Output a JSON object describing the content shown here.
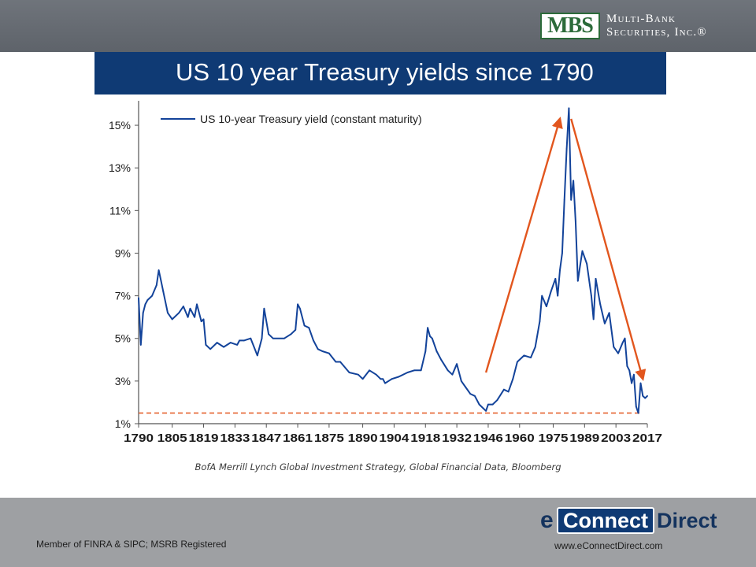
{
  "header": {
    "logo_abbr": "MBS",
    "logo_name_line1": "Multi-Bank",
    "logo_name_line2": "Securities, Inc.®"
  },
  "slide": {
    "title": "US 10 year Treasury yields since 1790",
    "source": "BofA Merrill Lynch Global Investment Strategy, Global Financial Data, Bloomberg"
  },
  "footer": {
    "member_text": "Member of FINRA & SIPC; MSRB Registered",
    "logo_e": "e",
    "logo_connect": "Connect",
    "logo_direct": "Direct",
    "url": "www.eConnectDirect.com"
  },
  "chart_data": {
    "type": "line",
    "title": "",
    "xlabel": "",
    "ylabel": "",
    "xlim": [
      1790,
      2017
    ],
    "ylim": [
      1,
      16
    ],
    "x_ticks": [
      1790,
      1805,
      1819,
      1833,
      1847,
      1861,
      1875,
      1890,
      1904,
      1918,
      1932,
      1946,
      1960,
      1975,
      1989,
      2003,
      2017
    ],
    "y_ticks": [
      1,
      3,
      5,
      7,
      9,
      11,
      13,
      15
    ],
    "y_tick_labels": [
      "1%",
      "3%",
      "5%",
      "7%",
      "9%",
      "11%",
      "13%",
      "15%"
    ],
    "grid": false,
    "legend_position": "top-left",
    "colors": {
      "series": "#13439a",
      "arrow": "#e2561e",
      "floor_line": "#e2561e"
    },
    "series": [
      {
        "name": "US 10-year Treasury yield (constant maturity)",
        "x": [
          1790,
          1791,
          1792,
          1793,
          1794,
          1796,
          1798,
          1799,
          1800,
          1801,
          1803,
          1805,
          1808,
          1810,
          1812,
          1813,
          1815,
          1816,
          1818,
          1819,
          1820,
          1822,
          1825,
          1828,
          1831,
          1834,
          1835,
          1837,
          1840,
          1843,
          1845,
          1846,
          1848,
          1850,
          1855,
          1858,
          1860,
          1861,
          1862,
          1864,
          1866,
          1868,
          1870,
          1872,
          1875,
          1878,
          1880,
          1884,
          1888,
          1890,
          1893,
          1896,
          1898,
          1899,
          1900,
          1903,
          1906,
          1910,
          1913,
          1916,
          1918,
          1919,
          1920,
          1921,
          1923,
          1925,
          1928,
          1930,
          1932,
          1934,
          1936,
          1938,
          1940,
          1942,
          1945,
          1946,
          1948,
          1950,
          1953,
          1955,
          1957,
          1959,
          1962,
          1965,
          1967,
          1969,
          1970,
          1972,
          1974,
          1976,
          1977,
          1978,
          1979,
          1980,
          1981,
          1982,
          1983,
          1984,
          1985,
          1986,
          1987,
          1988,
          1990,
          1992,
          1993,
          1994,
          1996,
          1998,
          2000,
          2002,
          2004,
          2006,
          2007,
          2008,
          2009,
          2010,
          2011,
          2012,
          2013,
          2014,
          2015,
          2016,
          2017
        ],
        "values": [
          6.9,
          4.7,
          6.2,
          6.6,
          6.8,
          7.0,
          7.5,
          8.2,
          7.7,
          7.2,
          6.2,
          5.9,
          6.2,
          6.5,
          6.0,
          6.4,
          6.0,
          6.6,
          5.8,
          5.9,
          4.7,
          4.5,
          4.8,
          4.6,
          4.8,
          4.7,
          4.9,
          4.9,
          5.0,
          4.2,
          5.0,
          6.4,
          5.2,
          5.0,
          5.0,
          5.2,
          5.4,
          6.6,
          6.4,
          5.6,
          5.5,
          4.9,
          4.5,
          4.4,
          4.3,
          3.9,
          3.9,
          3.4,
          3.3,
          3.1,
          3.5,
          3.3,
          3.1,
          3.1,
          2.9,
          3.1,
          3.2,
          3.4,
          3.5,
          3.5,
          4.4,
          5.5,
          5.1,
          5.0,
          4.4,
          4.0,
          3.5,
          3.3,
          3.8,
          3.0,
          2.7,
          2.4,
          2.3,
          1.9,
          1.6,
          1.9,
          1.9,
          2.1,
          2.6,
          2.5,
          3.1,
          3.9,
          4.2,
          4.1,
          4.6,
          5.8,
          7.0,
          6.5,
          7.2,
          7.8,
          7.0,
          8.2,
          9.0,
          11.5,
          13.9,
          15.8,
          11.5,
          12.4,
          10.5,
          7.7,
          8.4,
          9.1,
          8.5,
          7.0,
          5.9,
          7.8,
          6.6,
          5.7,
          6.2,
          4.6,
          4.3,
          4.8,
          5.0,
          3.7,
          3.5,
          2.9,
          3.3,
          1.8,
          1.5,
          2.9,
          2.3,
          2.2,
          2.3
        ]
      }
    ],
    "annotations": [
      {
        "type": "arrow",
        "from": [
          1945,
          3.4
        ],
        "to": [
          1978,
          15.3
        ]
      },
      {
        "type": "arrow",
        "from": [
          1983,
          15.3
        ],
        "to": [
          2015,
          3.1
        ]
      },
      {
        "type": "hline",
        "y": 1.5,
        "style": "dashed"
      }
    ]
  }
}
